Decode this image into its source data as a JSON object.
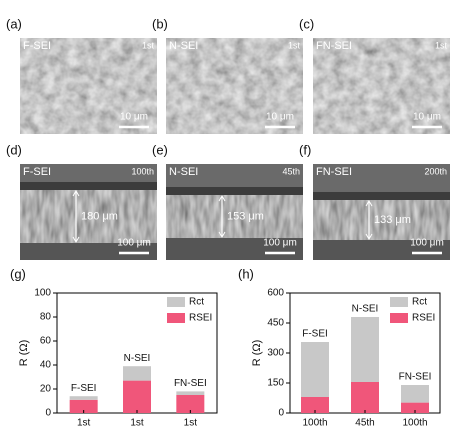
{
  "images": [
    {
      "label": "(a)",
      "tag": "F-SEI",
      "cycle": "1st",
      "scale": "10 μm"
    },
    {
      "label": "(b)",
      "tag": "N-SEI",
      "cycle": "1st",
      "scale": "10 μm"
    },
    {
      "label": "(c)",
      "tag": "FN-SEI",
      "cycle": "1st",
      "scale": "10 μm"
    },
    {
      "label": "(d)",
      "tag": "F-SEI",
      "cycle": "100th",
      "scale": "100 μm",
      "thickness": "180 μm"
    },
    {
      "label": "(e)",
      "tag": "N-SEI",
      "cycle": "45th",
      "scale": "100 μm",
      "thickness": "153 μm"
    },
    {
      "label": "(f)",
      "tag": "FN-SEI",
      "cycle": "200th",
      "scale": "100 μm",
      "thickness": "133 μm"
    }
  ],
  "chart_data": [
    {
      "type": "bar",
      "panel": "(g)",
      "ylabel": "R (Ω)",
      "categories": [
        "1st",
        "1st",
        "1st"
      ],
      "bar_labels": [
        "F-SEI",
        "N-SEI",
        "FN-SEI"
      ],
      "series": [
        {
          "name": "RSEI",
          "color": "#f0567a",
          "values": [
            11,
            27,
            15
          ]
        },
        {
          "name": "Rct",
          "color": "#c8c8c8",
          "values": [
            3,
            12,
            3
          ]
        }
      ],
      "ylim": [
        0,
        100
      ],
      "yticks": [
        0,
        20,
        40,
        60,
        80,
        100
      ]
    },
    {
      "type": "bar",
      "panel": "(h)",
      "ylabel": "R (Ω)",
      "categories": [
        "100th",
        "45th",
        "100th"
      ],
      "bar_labels": [
        "F-SEI",
        "N-SEI",
        "FN-SEI"
      ],
      "series": [
        {
          "name": "RSEI",
          "color": "#f0567a",
          "values": [
            80,
            155,
            52
          ]
        },
        {
          "name": "Rct",
          "color": "#c8c8c8",
          "values": [
            275,
            325,
            88
          ]
        }
      ],
      "ylim": [
        0,
        600
      ],
      "yticks": [
        0,
        150,
        300,
        450,
        600
      ]
    }
  ]
}
